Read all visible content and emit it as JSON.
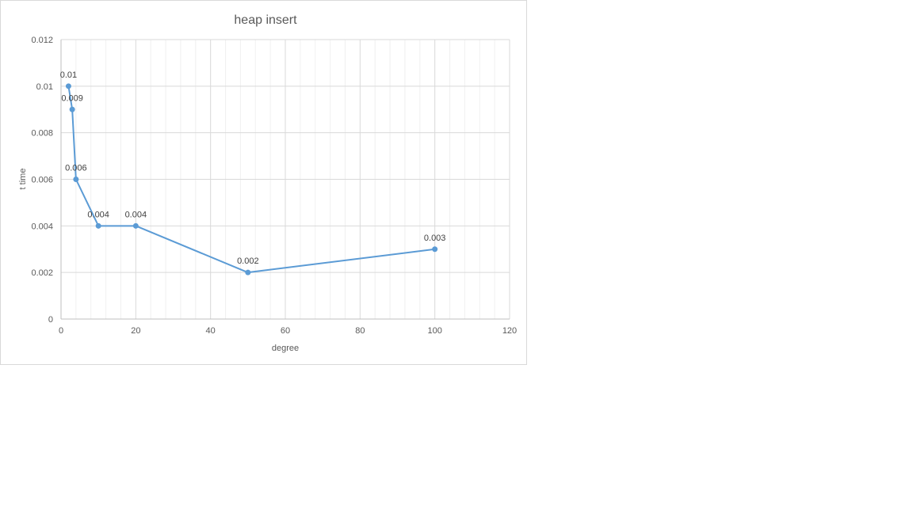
{
  "chart_data": {
    "type": "scatter",
    "title": "heap insert",
    "xlabel": "degree",
    "ylabel": "t time",
    "xlim": [
      0,
      120
    ],
    "ylim": [
      0,
      0.012
    ],
    "x_ticks": [
      "0",
      "20",
      "40",
      "60",
      "80",
      "100",
      "120"
    ],
    "y_ticks": [
      "0",
      "0.002",
      "0.004",
      "0.006",
      "0.008",
      "0.01",
      "0.012"
    ],
    "x_tick_values": [
      0,
      20,
      40,
      60,
      80,
      100,
      120
    ],
    "y_tick_values": [
      0,
      0.002,
      0.004,
      0.006,
      0.008,
      0.01,
      0.012
    ],
    "grid": true,
    "lines_connected": true,
    "series": [
      {
        "x": [
          2,
          3,
          4,
          10,
          20,
          50,
          100
        ],
        "y": [
          0.01,
          0.009,
          0.006,
          0.004,
          0.004,
          0.002,
          0.003
        ],
        "labels": [
          "0.01",
          "0.009",
          "0.006",
          "0.004",
          "0.004",
          "0.002",
          "0.003"
        ],
        "color": "#5b9bd5"
      }
    ],
    "colors": {
      "grid_major": "#d9d9d9",
      "grid_minor": "#f0f0f0",
      "axis": "#bfbfbf"
    }
  }
}
